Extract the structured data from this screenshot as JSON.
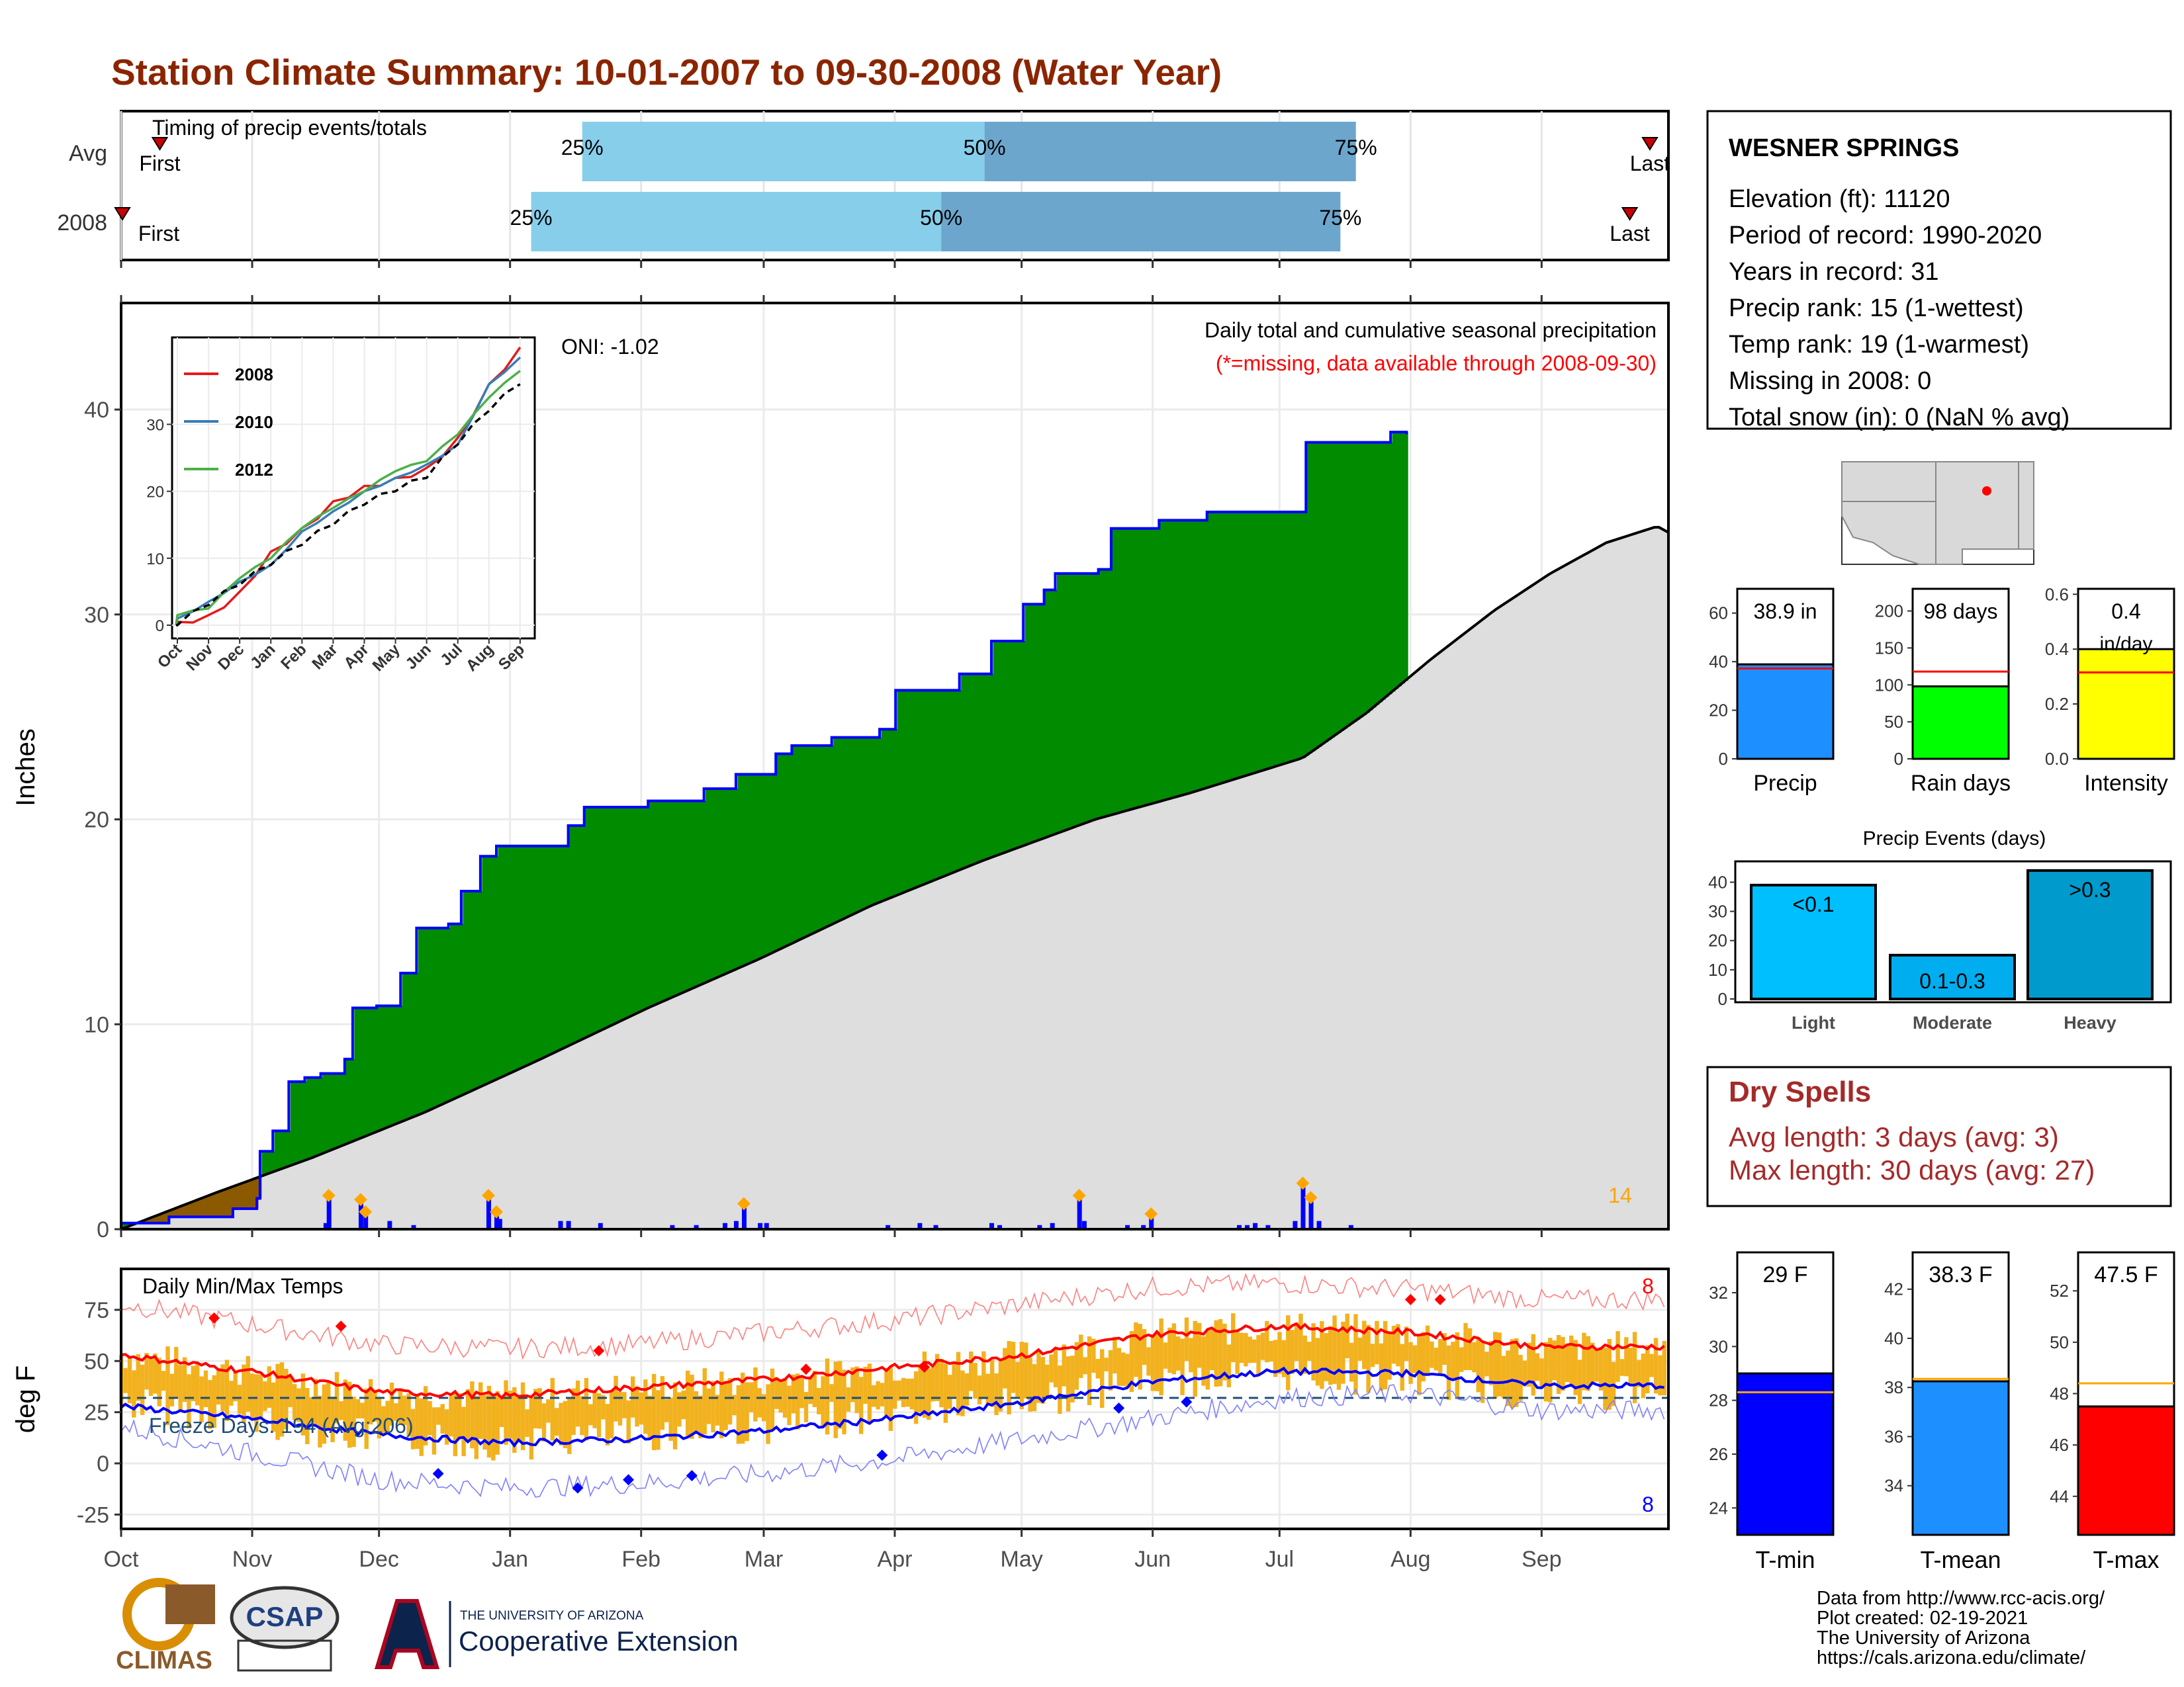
{
  "title": "Station Climate Summary: 10-01-2007 to 09-30-2008 (Water Year)",
  "timing": {
    "label": "Timing of precip events/totals",
    "rows": [
      "Avg",
      "2008"
    ],
    "first_label": "First",
    "last_label": "Last",
    "pct_labels": [
      "25%",
      "50%",
      "75%"
    ],
    "avg": {
      "first": 0.025,
      "p25": 0.298,
      "p50": 0.558,
      "p75": 0.798,
      "last": 0.988
    },
    "y2008": {
      "first": 0.0,
      "p25": 0.265,
      "p50": 0.53,
      "p75": 0.788,
      "last": 0.975
    }
  },
  "precip": {
    "ylabel": "Inches",
    "annotation_title": "Daily total and cumulative seasonal precipitation",
    "annotation_missing": "(*=missing, data available through 2008-09-30)",
    "oni": "ONI: -1.02",
    "count_label": "14",
    "yticks": [
      "0",
      "10",
      "20",
      "30",
      "40"
    ]
  },
  "inset": {
    "series": [
      "2008",
      "2010",
      "2012"
    ],
    "months": [
      "Oct",
      "Nov",
      "Dec",
      "Jan",
      "Feb",
      "Mar",
      "Apr",
      "May",
      "Jun",
      "Jul",
      "Aug",
      "Sep"
    ],
    "yticks": [
      "0",
      "10",
      "20",
      "30"
    ]
  },
  "temps": {
    "title": "Daily Min/Max Temps",
    "ylabel": "deg F",
    "freeze": "Freeze Days: 194 (Avg:206)",
    "max_count": "8",
    "min_count": "8",
    "yticks": [
      "-25",
      "0",
      "25",
      "50",
      "75"
    ]
  },
  "months": [
    "Oct",
    "Nov",
    "Dec",
    "Jan",
    "Feb",
    "Mar",
    "Apr",
    "May",
    "Jun",
    "Jul",
    "Aug",
    "Sep"
  ],
  "station": {
    "name": "WESNER SPRINGS",
    "lines": [
      "Elevation (ft): 11120",
      "Period of record: 1990-2020",
      "Years in record: 31",
      "Precip rank: 15 (1-wettest)",
      "Temp rank: 19 (1-warmest)",
      "Missing in 2008: 0",
      "Total snow (in): 0 (NaN % avg)"
    ]
  },
  "dry_spells": {
    "title": "Dry Spells",
    "avg": "Avg length: 3 days (avg: 3)",
    "max": "Max length: 30 days (avg: 27)"
  },
  "summary_bars": [
    {
      "label": "Precip",
      "value_label": "38.9 in",
      "value": 38.9,
      "avg": 37.2,
      "max": 70,
      "color": "#1E8FFF",
      "ticks": [
        "0",
        "20",
        "40",
        "60"
      ],
      "tickvals": [
        0,
        20,
        40,
        60
      ]
    },
    {
      "label": "Rain days",
      "value_label": "98 days",
      "value": 98,
      "avg": 118,
      "max": 230,
      "color": "#00FF00",
      "ticks": [
        "0",
        "50",
        "100",
        "150",
        "200"
      ],
      "tickvals": [
        0,
        50,
        100,
        150,
        200
      ]
    },
    {
      "label": "Intensity",
      "value_label": "0.4",
      "value_sub": "in/day",
      "value": 0.4,
      "avg": 0.315,
      "max": 0.62,
      "color": "#FFFF00",
      "ticks": [
        "0.0",
        "0.2",
        "0.4",
        "0.6"
      ],
      "tickvals": [
        0,
        0.2,
        0.4,
        0.6
      ]
    }
  ],
  "events": {
    "title": "Precip Events (days)",
    "categories": [
      "Light",
      "Moderate",
      "Heavy"
    ],
    "bar_labels": [
      "<0.1",
      "0.1-0.3",
      ">0.3"
    ],
    "values": [
      39,
      15,
      44
    ],
    "colors": [
      "#00BFFF",
      "#00AEEF",
      "#009ACD"
    ],
    "ticks": [
      "0",
      "10",
      "20",
      "30",
      "40"
    ]
  },
  "temp_bars": [
    {
      "label": "T-min",
      "value_label": "29 F",
      "value": 29.0,
      "avg": 28.3,
      "ymin": 23,
      "ymax": 33.5,
      "color": "#0000FF",
      "ticks": [
        "24",
        "26",
        "28",
        "30",
        "32"
      ],
      "tickvals": [
        24,
        26,
        28,
        30,
        32
      ]
    },
    {
      "label": "T-mean",
      "value_label": "38.3 F",
      "value": 38.25,
      "avg": 38.35,
      "ymin": 32,
      "ymax": 43.5,
      "color": "#1E8FFF",
      "ticks": [
        "34",
        "36",
        "38",
        "40",
        "42"
      ],
      "tickvals": [
        34,
        36,
        38,
        40,
        42
      ]
    },
    {
      "label": "T-max",
      "value_label": "47.5 F",
      "value": 47.5,
      "avg": 48.4,
      "ymin": 42.5,
      "ymax": 53.5,
      "color": "#FF0000",
      "ticks": [
        "44",
        "46",
        "48",
        "50",
        "52"
      ],
      "tickvals": [
        44,
        46,
        48,
        50,
        52
      ]
    }
  ],
  "footer": {
    "lines": [
      "Data from http://www.rcc-acis.org/",
      "Plot created: 02-19-2021",
      "The University of Arizona",
      "https://cals.arizona.edu/climate/"
    ],
    "climas": "CLIMAS",
    "csap": "CSAP",
    "ua_small": "THE UNIVERSITY OF ARIZONA",
    "ua_big": "Cooperative Extension"
  },
  "chart_data": [
    {
      "type": "area",
      "name": "cumulative precipitation",
      "x_type": "day of water year",
      "ylim": [
        0,
        42
      ],
      "ylabel": "Inches",
      "title": "Daily total and cumulative seasonal precipitation",
      "observed_2008": [
        [
          0,
          0.3
        ],
        [
          30,
          0.6
        ],
        [
          60,
          0.6
        ],
        [
          70,
          1.0
        ],
        [
          85,
          1.5
        ],
        [
          87,
          3.8
        ],
        [
          95,
          4.8
        ],
        [
          105,
          7.2
        ],
        [
          115,
          7.4
        ],
        [
          125,
          7.6
        ],
        [
          140,
          8.3
        ],
        [
          145,
          10.8
        ],
        [
          160,
          10.9
        ],
        [
          175,
          12.5
        ],
        [
          185,
          14.7
        ],
        [
          205,
          14.9
        ],
        [
          213,
          16.5
        ],
        [
          225,
          18.2
        ],
        [
          235,
          18.7
        ],
        [
          270,
          18.7
        ],
        [
          280,
          19.7
        ],
        [
          290,
          20.6
        ],
        [
          330,
          20.9
        ],
        [
          365,
          21.5
        ],
        [
          385,
          22.2
        ],
        [
          410,
          23.2
        ],
        [
          420,
          23.6
        ],
        [
          430,
          23.6
        ],
        [
          445,
          24.0
        ],
        [
          475,
          24.4
        ],
        [
          485,
          26.3
        ],
        [
          525,
          27.1
        ],
        [
          545,
          28.7
        ],
        [
          565,
          30.5
        ],
        [
          578,
          31.2
        ],
        [
          585,
          32.0
        ],
        [
          612,
          32.2
        ],
        [
          620,
          34.2
        ],
        [
          650,
          34.6
        ],
        [
          680,
          35.0
        ],
        [
          735,
          35.0
        ],
        [
          742,
          38.4
        ],
        [
          795,
          38.9
        ],
        [
          805,
          38.8
        ]
      ],
      "average": [
        [
          0,
          0.0
        ],
        [
          60,
          1.8
        ],
        [
          120,
          3.5
        ],
        [
          190,
          5.7
        ],
        [
          260,
          8.2
        ],
        [
          330,
          10.8
        ],
        [
          400,
          13.2
        ],
        [
          470,
          15.8
        ],
        [
          540,
          18.0
        ],
        [
          610,
          20.0
        ],
        [
          670,
          21.3
        ],
        [
          740,
          23.0
        ],
        [
          780,
          25.2
        ],
        [
          820,
          27.8
        ],
        [
          860,
          30.2
        ],
        [
          895,
          32.0
        ],
        [
          930,
          33.5
        ],
        [
          962,
          34.3
        ],
        [
          969,
          34.0
        ]
      ],
      "daily_marks": [
        [
          128,
          0.3
        ],
        [
          130,
          1.6
        ],
        [
          150,
          1.4
        ],
        [
          153,
          0.8
        ],
        [
          168,
          0.4
        ],
        [
          183,
          0.2
        ],
        [
          230,
          1.6
        ],
        [
          235,
          0.8
        ],
        [
          237,
          0.5
        ],
        [
          275,
          0.4
        ],
        [
          280,
          0.4
        ],
        [
          300,
          0.3
        ],
        [
          345,
          0.2
        ],
        [
          360,
          0.2
        ],
        [
          378,
          0.3
        ],
        [
          385,
          0.4
        ],
        [
          390,
          1.2
        ],
        [
          400,
          0.3
        ],
        [
          404,
          0.3
        ],
        [
          480,
          0.2
        ],
        [
          500,
          0.3
        ],
        [
          510,
          0.2
        ],
        [
          545,
          0.3
        ],
        [
          550,
          0.2
        ],
        [
          575,
          0.2
        ],
        [
          583,
          0.3
        ],
        [
          600,
          1.6
        ],
        [
          603,
          0.4
        ],
        [
          630,
          0.2
        ],
        [
          640,
          0.2
        ],
        [
          645,
          0.7
        ],
        [
          700,
          0.2
        ],
        [
          705,
          0.2
        ],
        [
          710,
          0.3
        ],
        [
          718,
          0.2
        ],
        [
          735,
          0.4
        ],
        [
          740,
          2.2
        ],
        [
          745,
          1.5
        ],
        [
          750,
          0.4
        ],
        [
          770,
          0.2
        ]
      ]
    },
    {
      "type": "line",
      "name": "inset cumulative precipitation",
      "x": [
        "Oct",
        "Nov",
        "Dec",
        "Jan",
        "Feb",
        "Mar",
        "Apr",
        "May",
        "Jun",
        "Jul",
        "Aug",
        "Sep"
      ],
      "ylim": [
        0,
        42
      ],
      "series": [
        {
          "name": "2008",
          "color": "#E41A1C",
          "values": [
            0.5,
            1.5,
            5.0,
            11.0,
            14.5,
            18.5,
            20.8,
            22.0,
            23.5,
            28.0,
            36.0,
            41.5
          ]
        },
        {
          "name": "2010",
          "color": "#377EB8",
          "values": [
            1.0,
            3.5,
            6.5,
            9.0,
            14.0,
            17.0,
            20.0,
            22.0,
            24.0,
            27.0,
            36.0,
            40.0
          ]
        },
        {
          "name": "2012",
          "color": "#4DAF4A",
          "values": [
            1.5,
            2.5,
            7.0,
            10.0,
            14.5,
            17.5,
            20.0,
            23.0,
            24.5,
            28.5,
            34.0,
            38.0
          ]
        },
        {
          "name": "",
          "color": "#000000",
          "dashed": true,
          "values": [
            0.0,
            3.0,
            6.0,
            9.0,
            12.0,
            15.0,
            18.0,
            20.0,
            22.0,
            27.0,
            32.0,
            36.0
          ]
        }
      ]
    },
    {
      "type": "line",
      "name": "daily temperatures",
      "x": [
        "Oct",
        "Nov",
        "Dec",
        "Jan",
        "Feb",
        "Mar",
        "Apr",
        "May",
        "Jun",
        "Jul",
        "Aug",
        "Sep"
      ],
      "ylim": [
        -30,
        95
      ],
      "ylabel": "deg F",
      "series": [
        {
          "name": "avg max",
          "color": "#FF0000",
          "values": [
            53,
            45,
            35,
            33,
            37,
            41,
            47,
            53,
            63,
            67,
            64,
            57
          ]
        },
        {
          "name": "avg min",
          "color": "#0000FF",
          "values": [
            28,
            22,
            14,
            10,
            12,
            16,
            22,
            30,
            40,
            45,
            44,
            38
          ]
        },
        {
          "name": "record max",
          "color": "#FF6666",
          "values": [
            78,
            68,
            58,
            56,
            58,
            64,
            70,
            78,
            86,
            88,
            85,
            80
          ]
        },
        {
          "name": "record min",
          "color": "#6666FF",
          "values": [
            18,
            5,
            -8,
            -12,
            -10,
            -5,
            2,
            12,
            22,
            32,
            34,
            26
          ]
        }
      ],
      "freeze_line": 32
    }
  ]
}
